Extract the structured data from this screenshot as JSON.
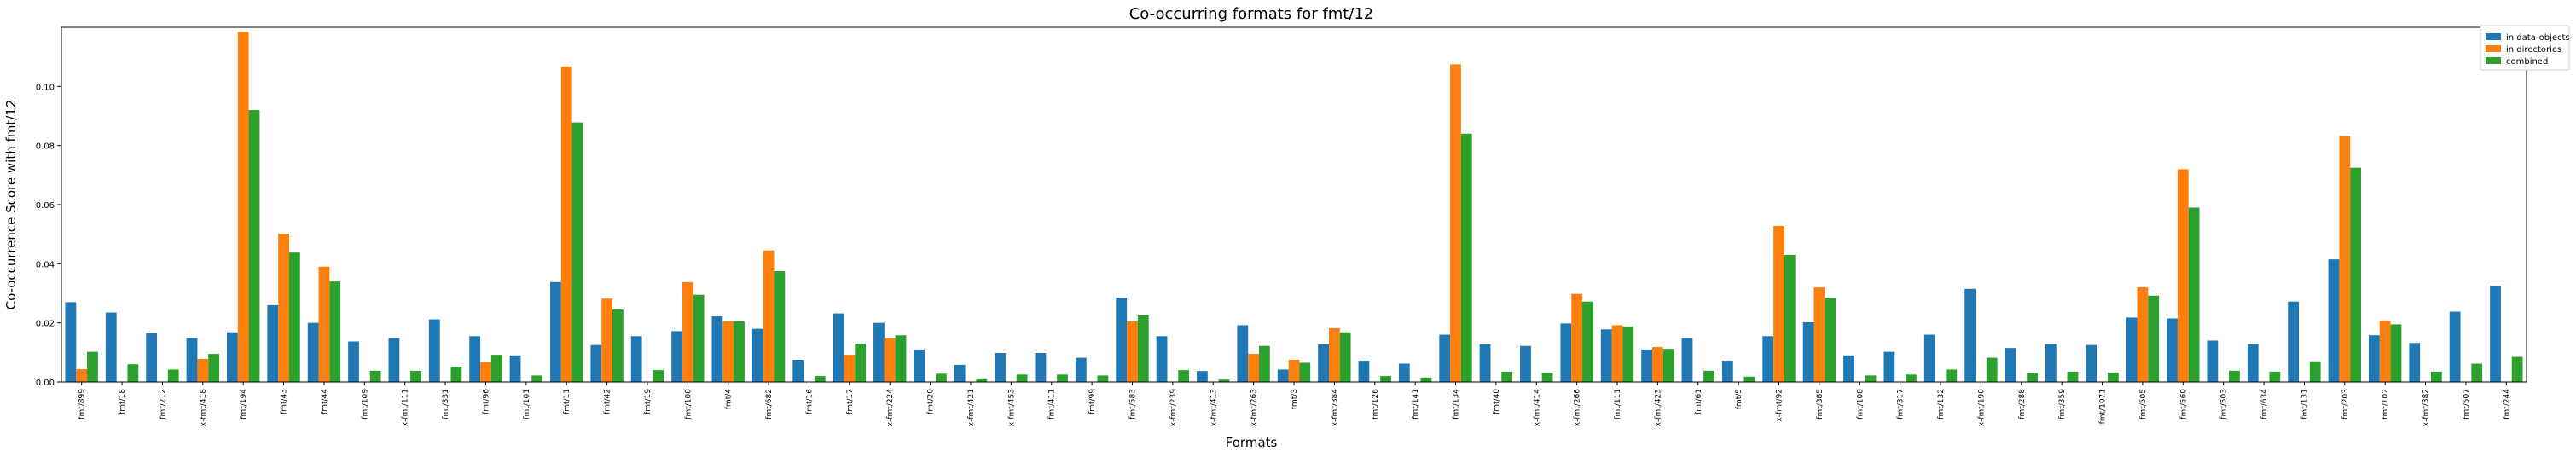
{
  "chart_data": {
    "type": "bar",
    "title": "Co-occurring formats for fmt/12",
    "xlabel": "Formats",
    "ylabel": "Co-occurrence Score with fmt/12",
    "ylim": [
      0,
      0.12
    ],
    "yticks": [
      "0.00",
      "0.02",
      "0.04",
      "0.06",
      "0.08",
      "0.10"
    ],
    "grid": false,
    "legend_position": "outside-top-right",
    "categories": [
      "fmt/899",
      "fmt/18",
      "fmt/212",
      "x-fmt/418",
      "fmt/194",
      "fmt/43",
      "fmt/44",
      "fmt/109",
      "x-fmt/111",
      "fmt/331",
      "fmt/96",
      "fmt/101",
      "fmt/11",
      "fmt/42",
      "fmt/19",
      "fmt/100",
      "fmt/4",
      "fmt/682",
      "fmt/16",
      "fmt/17",
      "x-fmt/224",
      "fmt/20",
      "x-fmt/421",
      "x-fmt/453",
      "fmt/411",
      "fmt/99",
      "fmt/583",
      "x-fmt/239",
      "x-fmt/413",
      "x-fmt/263",
      "fmt/3",
      "x-fmt/384",
      "fmt/126",
      "fmt/141",
      "fmt/134",
      "fmt/40",
      "x-fmt/414",
      "x-fmt/266",
      "fmt/111",
      "x-fmt/423",
      "fmt/61",
      "fmt/5",
      "x-fmt/92",
      "fmt/385",
      "fmt/108",
      "fmt/317",
      "fmt/132",
      "x-fmt/190",
      "fmt/288",
      "fmt/359",
      "fmt/1071",
      "fmt/505",
      "fmt/560",
      "fmt/503",
      "fmt/634",
      "fmt/131",
      "fmt/203",
      "fmt/102",
      "x-fmt/382",
      "fmt/507",
      "fmt/244"
    ],
    "series": [
      {
        "name": "in data-objects",
        "color": "#1f77b4",
        "values": [
          0.027,
          0.0235,
          0.0165,
          0.0148,
          0.0168,
          0.026,
          0.02,
          0.0137,
          0.0148,
          0.0212,
          0.0155,
          0.009,
          0.0338,
          0.0125,
          0.0155,
          0.0172,
          0.0222,
          0.018,
          0.0075,
          0.0232,
          0.02,
          0.011,
          0.0058,
          0.0098,
          0.0098,
          0.0082,
          0.0285,
          0.0155,
          0.0037,
          0.0192,
          0.0042,
          0.0127,
          0.0072,
          0.0062,
          0.016,
          0.0128,
          0.0122,
          0.0198,
          0.0178,
          0.011,
          0.0148,
          0.0072,
          0.0155,
          0.0202,
          0.009,
          0.0102,
          0.016,
          0.0315,
          0.0115,
          0.0128,
          0.0125,
          0.0218,
          0.0215,
          0.014,
          0.0128,
          0.0272,
          0.0415,
          0.0158,
          0.0132,
          0.0238,
          0.0325
        ]
      },
      {
        "name": "in directories",
        "color": "#ff7f0e",
        "values": [
          0.0043,
          0,
          0,
          0.0078,
          0.1185,
          0.0502,
          0.039,
          0,
          0,
          0,
          0.0068,
          0,
          0.1068,
          0.0282,
          0,
          0.0338,
          0.0205,
          0.0445,
          0,
          0.0092,
          0.0148,
          0,
          0,
          0,
          0,
          0,
          0.0205,
          0,
          0,
          0.0095,
          0.0075,
          0.0182,
          0,
          0,
          0.1075,
          0,
          0,
          0.0298,
          0.0192,
          0.0118,
          0,
          0,
          0.0528,
          0.032,
          0,
          0,
          0,
          0,
          0,
          0,
          0,
          0.032,
          0.072,
          0,
          0,
          0,
          0.0832,
          0.0208,
          0,
          0,
          0
        ]
      },
      {
        "name": "combined",
        "color": "#2ca02c",
        "values": [
          0.0102,
          0.006,
          0.0042,
          0.0095,
          0.092,
          0.0438,
          0.034,
          0.0038,
          0.0038,
          0.0052,
          0.0092,
          0.0022,
          0.0878,
          0.0245,
          0.004,
          0.0295,
          0.0205,
          0.0375,
          0.002,
          0.013,
          0.0158,
          0.0028,
          0.0012,
          0.0025,
          0.0025,
          0.0022,
          0.0225,
          0.004,
          0.0008,
          0.0122,
          0.0065,
          0.0168,
          0.002,
          0.0015,
          0.084,
          0.0035,
          0.0032,
          0.0272,
          0.0188,
          0.0112,
          0.0038,
          0.0018,
          0.043,
          0.0285,
          0.0022,
          0.0025,
          0.0042,
          0.0082,
          0.003,
          0.0035,
          0.0032,
          0.0292,
          0.059,
          0.0038,
          0.0035,
          0.007,
          0.0725,
          0.0195,
          0.0035,
          0.0062,
          0.0085
        ]
      }
    ]
  }
}
